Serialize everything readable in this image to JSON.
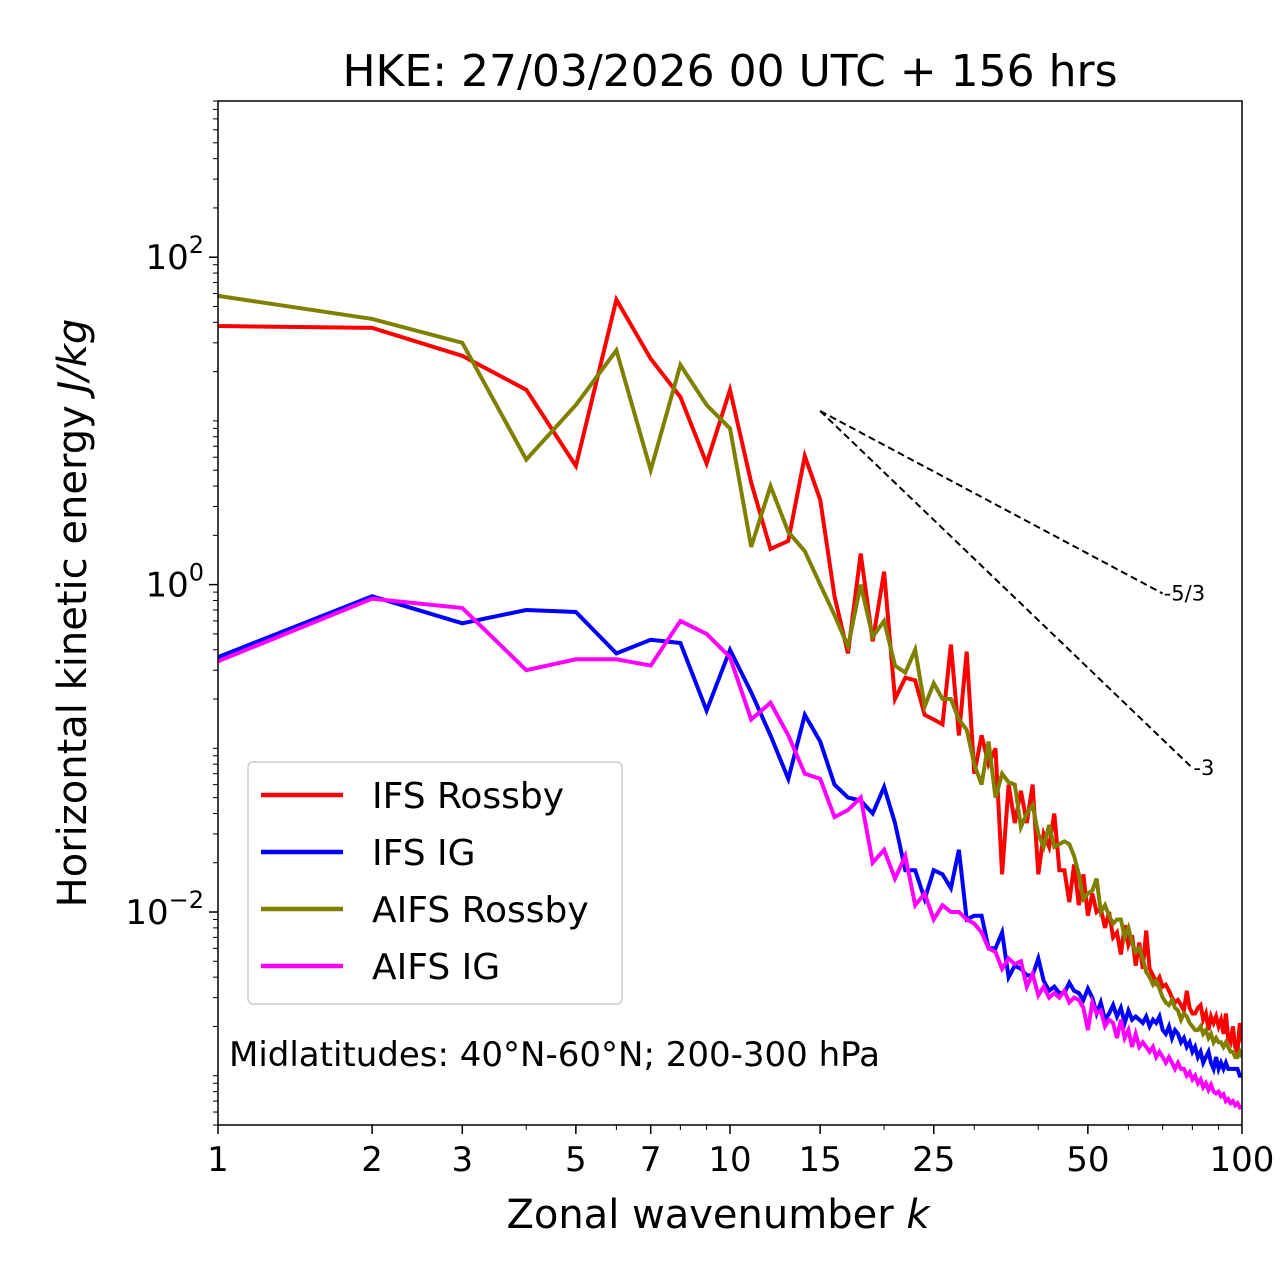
{
  "chart_data": {
    "type": "line",
    "title": "HKE: 27/03/2026 00 UTC + 156 hrs",
    "xlabel": "Zonal wavenumber",
    "xlabel_var": "k",
    "ylabel": "Horizontal kinetic energy",
    "ylabel_unit": "J/kg",
    "xscale": "log",
    "yscale": "log",
    "xlim": [
      1,
      100
    ],
    "ylim": [
      0.0005,
      900
    ],
    "x_ticks": [
      {
        "value": 1,
        "label": "1"
      },
      {
        "value": 2,
        "label": "2"
      },
      {
        "value": 3,
        "label": "3"
      },
      {
        "value": 5,
        "label": "5"
      },
      {
        "value": 7,
        "label": "7"
      },
      {
        "value": 10,
        "label": "10"
      },
      {
        "value": 15,
        "label": "15"
      },
      {
        "value": 25,
        "label": "25"
      },
      {
        "value": 50,
        "label": "50"
      },
      {
        "value": 100,
        "label": "100"
      }
    ],
    "y_ticks": [
      {
        "value": 100,
        "base": "10",
        "exp": "2"
      },
      {
        "value": 1,
        "base": "10",
        "exp": "0"
      },
      {
        "value": 0.01,
        "base": "10",
        "exp": "−2"
      }
    ],
    "annotation": "Midlatitudes: 40°N-60°N; 200-300 hPa",
    "legend_position": "lower-left",
    "reference_lines": [
      {
        "label": "-5/3",
        "slope": -1.6667,
        "x": [
          15,
          70
        ],
        "y0": 11.5
      },
      {
        "label": "-3",
        "slope": -3,
        "x": [
          15,
          80
        ],
        "y0": 11.5
      }
    ],
    "series": [
      {
        "name": "IFS Rossby",
        "color": "#ff0000",
        "x": [
          1,
          2,
          3,
          4,
          5,
          6,
          7,
          8,
          9,
          10,
          11,
          12,
          13,
          14,
          15,
          16,
          17,
          18,
          19,
          20,
          21,
          22,
          23,
          24,
          25,
          26,
          27,
          28,
          29,
          30,
          31,
          32,
          33,
          34,
          35,
          36,
          37,
          38,
          39,
          40,
          41,
          42,
          43,
          44,
          45,
          46,
          47,
          48,
          49,
          50,
          51,
          52,
          53,
          54,
          55,
          56,
          57,
          58,
          59,
          60,
          61,
          62,
          63,
          64,
          65,
          66,
          67,
          68,
          69,
          70,
          71,
          72,
          73,
          74,
          75,
          76,
          77,
          78,
          79,
          80,
          81,
          82,
          83,
          84,
          85,
          86,
          87,
          88,
          89,
          90,
          91,
          92,
          93,
          94,
          95,
          96,
          97,
          98,
          99,
          100
        ],
        "y": [
          38,
          37,
          25,
          15.5,
          5.3,
          55,
          24,
          14,
          5.5,
          15.5,
          4.2,
          1.65,
          1.85,
          6.1,
          3.3,
          0.85,
          0.38,
          1.55,
          0.45,
          1.2,
          0.2,
          0.27,
          0.26,
          0.16,
          0.15,
          0.14,
          0.43,
          0.12,
          0.39,
          0.07,
          0.12,
          0.08,
          0.1,
          0.017,
          0.06,
          0.035,
          0.055,
          0.035,
          0.06,
          0.017,
          0.03,
          0.025,
          0.04,
          0.018,
          0.018,
          0.0115,
          0.0195,
          0.011,
          0.017,
          0.0095,
          0.013,
          0.01,
          0.0105,
          0.008,
          0.01,
          0.007,
          0.0075,
          0.0055,
          0.0083,
          0.0063,
          0.0072,
          0.0047,
          0.0065,
          0.0045,
          0.0077,
          0.0045,
          0.0041,
          0.0037,
          0.004,
          0.0035,
          0.0036,
          0.0033,
          0.003,
          0.0028,
          0.0029,
          0.0027,
          0.0025,
          0.0033,
          0.0026,
          0.0024,
          0.0024,
          0.0026,
          0.0027,
          0.0022,
          0.0024,
          0.0019,
          0.0023,
          0.0021,
          0.0023,
          0.002,
          0.0022,
          0.0018,
          0.0024,
          0.0017,
          0.0016,
          0.002,
          0.0015,
          0.0014,
          0.0021,
          0.0016
        ]
      },
      {
        "name": "IFS IG",
        "color": "#0000ff",
        "x": [
          1,
          2,
          3,
          4,
          5,
          6,
          7,
          8,
          9,
          10,
          11,
          12,
          13,
          14,
          15,
          16,
          17,
          18,
          19,
          20,
          21,
          22,
          23,
          24,
          25,
          26,
          27,
          28,
          29,
          30,
          31,
          32,
          33,
          34,
          35,
          36,
          37,
          38,
          39,
          40,
          41,
          42,
          43,
          44,
          45,
          46,
          47,
          48,
          49,
          50,
          51,
          52,
          53,
          54,
          55,
          56,
          57,
          58,
          59,
          60,
          61,
          62,
          63,
          64,
          65,
          66,
          67,
          68,
          69,
          70,
          71,
          72,
          73,
          74,
          75,
          76,
          77,
          78,
          79,
          80,
          81,
          82,
          83,
          84,
          85,
          86,
          87,
          88,
          89,
          90,
          91,
          92,
          93,
          94,
          95,
          96,
          97,
          98,
          99,
          100
        ],
        "y": [
          0.36,
          0.85,
          0.58,
          0.7,
          0.68,
          0.38,
          0.46,
          0.44,
          0.17,
          0.4,
          0.22,
          0.12,
          0.065,
          0.16,
          0.11,
          0.06,
          0.05,
          0.048,
          0.04,
          0.058,
          0.035,
          0.018,
          0.018,
          0.012,
          0.018,
          0.017,
          0.014,
          0.024,
          0.009,
          0.0095,
          0.0095,
          0.006,
          0.006,
          0.0075,
          0.004,
          0.0047,
          0.0045,
          0.0041,
          0.0041,
          0.0052,
          0.0038,
          0.0033,
          0.0035,
          0.0032,
          0.0032,
          0.0037,
          0.0033,
          0.0032,
          0.0029,
          0.0034,
          0.003,
          0.0024,
          0.0028,
          0.0022,
          0.0024,
          0.0027,
          0.0023,
          0.0026,
          0.0021,
          0.0025,
          0.0022,
          0.0023,
          0.0022,
          0.0021,
          0.0023,
          0.002,
          0.0022,
          0.0021,
          0.0023,
          0.0019,
          0.0018,
          0.002,
          0.0017,
          0.0019,
          0.0018,
          0.0016,
          0.0017,
          0.0015,
          0.0016,
          0.0014,
          0.0015,
          0.0013,
          0.0014,
          0.0012,
          0.0013,
          0.0014,
          0.0012,
          0.0011,
          0.0013,
          0.0011,
          0.0012,
          0.0011,
          0.0012,
          0.0011,
          0.0011,
          0.0011,
          0.0011,
          0.0011,
          0.001,
          0.001
        ]
      },
      {
        "name": "AIFS Rossby",
        "color": "#808000",
        "x": [
          1,
          2,
          3,
          4,
          5,
          6,
          7,
          8,
          9,
          10,
          11,
          12,
          13,
          14,
          15,
          16,
          17,
          18,
          19,
          20,
          21,
          22,
          23,
          24,
          25,
          26,
          27,
          28,
          29,
          30,
          31,
          32,
          33,
          34,
          35,
          36,
          37,
          38,
          39,
          40,
          41,
          42,
          43,
          44,
          45,
          46,
          47,
          48,
          49,
          50,
          51,
          52,
          53,
          54,
          55,
          56,
          57,
          58,
          59,
          60,
          61,
          62,
          63,
          64,
          65,
          66,
          67,
          68,
          69,
          70,
          71,
          72,
          73,
          74,
          75,
          76,
          77,
          78,
          79,
          80,
          81,
          82,
          83,
          84,
          85,
          86,
          87,
          88,
          89,
          90,
          91,
          92,
          93,
          94,
          95,
          96,
          97,
          98,
          99,
          100
        ],
        "y": [
          58,
          42,
          30,
          5.8,
          12.5,
          27,
          5,
          22,
          12.5,
          9,
          1.7,
          4,
          2.1,
          1.6,
          1,
          0.65,
          0.42,
          1,
          0.48,
          0.6,
          0.32,
          0.29,
          0.4,
          0.18,
          0.25,
          0.2,
          0.2,
          0.15,
          0.13,
          0.08,
          0.06,
          0.11,
          0.05,
          0.07,
          0.062,
          0.06,
          0.033,
          0.04,
          0.045,
          0.03,
          0.025,
          0.034,
          0.025,
          0.026,
          0.027,
          0.026,
          0.022,
          0.017,
          0.012,
          0.013,
          0.0135,
          0.016,
          0.01,
          0.011,
          0.0095,
          0.0085,
          0.009,
          0.009,
          0.007,
          0.008,
          0.0065,
          0.0057,
          0.006,
          0.0052,
          0.0043,
          0.004,
          0.0036,
          0.0038,
          0.0034,
          0.003,
          0.0028,
          0.0027,
          0.0029,
          0.0026,
          0.0025,
          0.0022,
          0.0024,
          0.0023,
          0.0021,
          0.002,
          0.0019,
          0.0019,
          0.002,
          0.0018,
          0.0019,
          0.0017,
          0.0018,
          0.0016,
          0.0017,
          0.0016,
          0.0016,
          0.0015,
          0.0016,
          0.0015,
          0.0014,
          0.0014,
          0.0013,
          0.0013,
          0.0014,
          0.0013
        ]
      },
      {
        "name": "AIFS IG",
        "color": "#ff00ff",
        "x": [
          1,
          2,
          3,
          4,
          5,
          6,
          7,
          8,
          9,
          10,
          11,
          12,
          13,
          14,
          15,
          16,
          17,
          18,
          19,
          20,
          21,
          22,
          23,
          24,
          25,
          26,
          27,
          28,
          29,
          30,
          31,
          32,
          33,
          34,
          35,
          36,
          37,
          38,
          39,
          40,
          41,
          42,
          43,
          44,
          45,
          46,
          47,
          48,
          49,
          50,
          51,
          52,
          53,
          54,
          55,
          56,
          57,
          58,
          59,
          60,
          61,
          62,
          63,
          64,
          65,
          66,
          67,
          68,
          69,
          70,
          71,
          72,
          73,
          74,
          75,
          76,
          77,
          78,
          79,
          80,
          81,
          82,
          83,
          84,
          85,
          86,
          87,
          88,
          89,
          90,
          91,
          92,
          93,
          94,
          95,
          96,
          97,
          98,
          99,
          100
        ],
        "y": [
          0.34,
          0.82,
          0.72,
          0.3,
          0.35,
          0.35,
          0.32,
          0.6,
          0.5,
          0.36,
          0.15,
          0.19,
          0.12,
          0.07,
          0.065,
          0.038,
          0.042,
          0.05,
          0.02,
          0.024,
          0.016,
          0.022,
          0.011,
          0.013,
          0.009,
          0.011,
          0.01,
          0.01,
          0.009,
          0.0085,
          0.0075,
          0.006,
          0.0057,
          0.0045,
          0.0052,
          0.0048,
          0.005,
          0.0035,
          0.0042,
          0.0031,
          0.0035,
          0.003,
          0.0032,
          0.003,
          0.0033,
          0.0028,
          0.003,
          0.0029,
          0.0026,
          0.0019,
          0.0028,
          0.0024,
          0.0025,
          0.002,
          0.0022,
          0.0021,
          0.0017,
          0.0022,
          0.0017,
          0.0019,
          0.0015,
          0.0018,
          0.0015,
          0.0016,
          0.0015,
          0.0014,
          0.0015,
          0.0013,
          0.0014,
          0.0013,
          0.0012,
          0.0013,
          0.0012,
          0.0011,
          0.0012,
          0.0011,
          0.0011,
          0.001,
          0.00105,
          0.00095,
          0.001,
          0.0009,
          0.00095,
          0.00085,
          0.0009,
          0.00082,
          0.00088,
          0.0008,
          0.00078,
          0.0008,
          0.00075,
          0.00077,
          0.0007,
          0.00072,
          0.00068,
          0.0007,
          0.00066,
          0.00068,
          0.00064,
          0.00065
        ]
      }
    ]
  }
}
